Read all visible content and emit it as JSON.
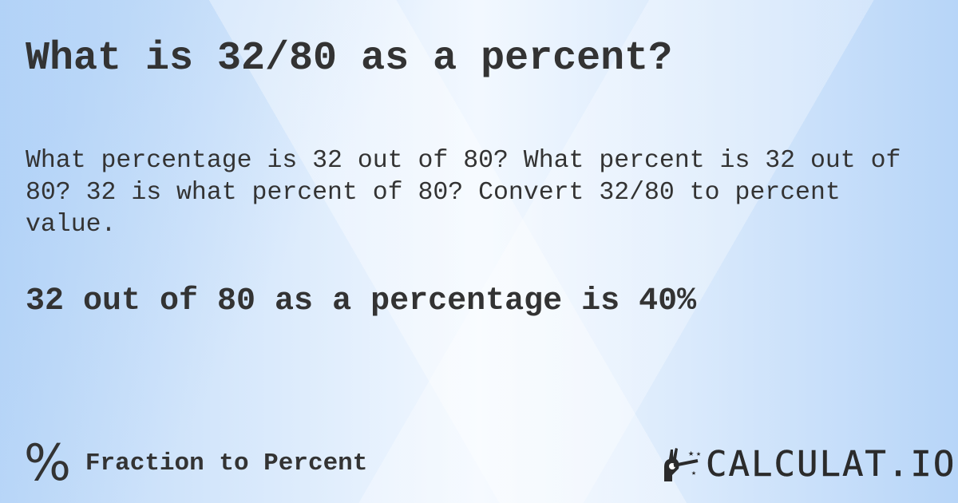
{
  "title": "What is 32/80 as a percent?",
  "description": "What percentage is 32 out of 80? What percent is 32 out of 80? 32 is what percent of 80? Convert 32/80 to percent value.",
  "result": "32 out of 80 as a percentage is 40%",
  "footer": {
    "category_icon": "percent-icon",
    "category_symbol": "%",
    "category": "Fraction to Percent",
    "logo_text": "CALCULAT.IO",
    "logo_icon": "magic-wand-hand-icon"
  }
}
